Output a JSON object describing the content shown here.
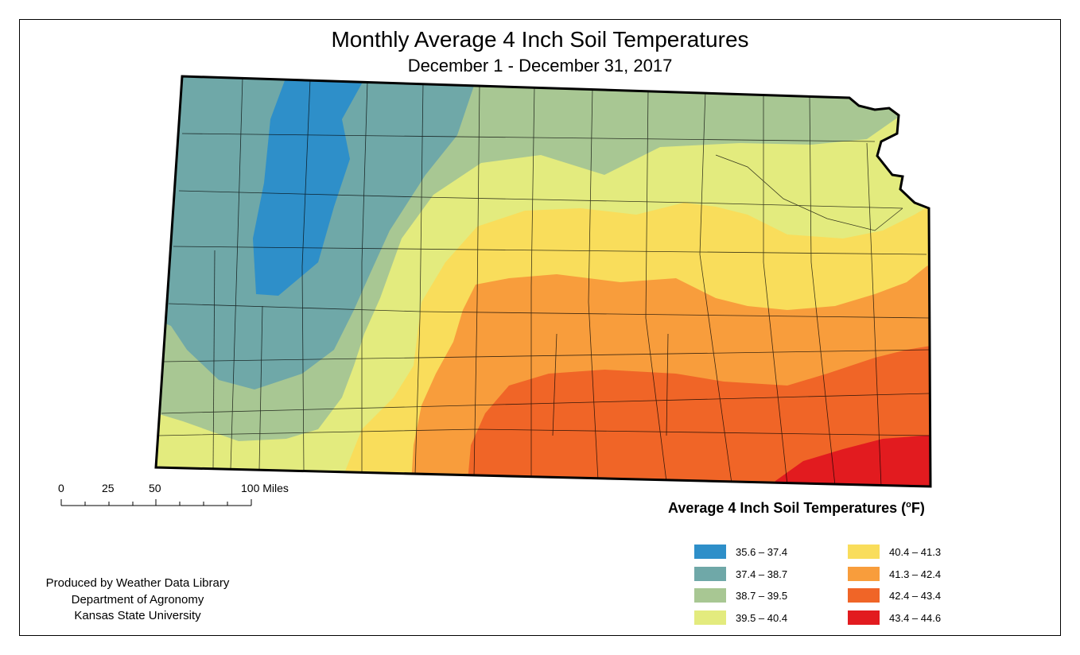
{
  "title": "Monthly Average 4 Inch Soil Temperatures",
  "subtitle": "December 1 - December 31, 2017",
  "legend": {
    "title": "Average 4 Inch Soil Temperatures",
    "unit_sup": "o",
    "unit_letter": "F)",
    "classes": [
      {
        "label": "35.6 – 37.4",
        "color": "#2e8fc9"
      },
      {
        "label": "37.4 – 38.7",
        "color": "#6fa8a8"
      },
      {
        "label": "38.7 – 39.5",
        "color": "#a8c793"
      },
      {
        "label": "39.5 – 40.4",
        "color": "#e3eb7e"
      },
      {
        "label": "40.4 – 41.3",
        "color": "#f9dd5b"
      },
      {
        "label": "41.3 – 42.4",
        "color": "#f89d3c"
      },
      {
        "label": "42.4 – 43.4",
        "color": "#f06527"
      },
      {
        "label": "43.4 – 44.6",
        "color": "#e21b1f"
      }
    ]
  },
  "scale_bar": {
    "labels": [
      "0",
      "25",
      "50",
      "100 Miles"
    ]
  },
  "credits": {
    "line1": "Produced by Weather Data Library",
    "line2": "Department of Agronomy",
    "line3": "Kansas State University"
  }
}
